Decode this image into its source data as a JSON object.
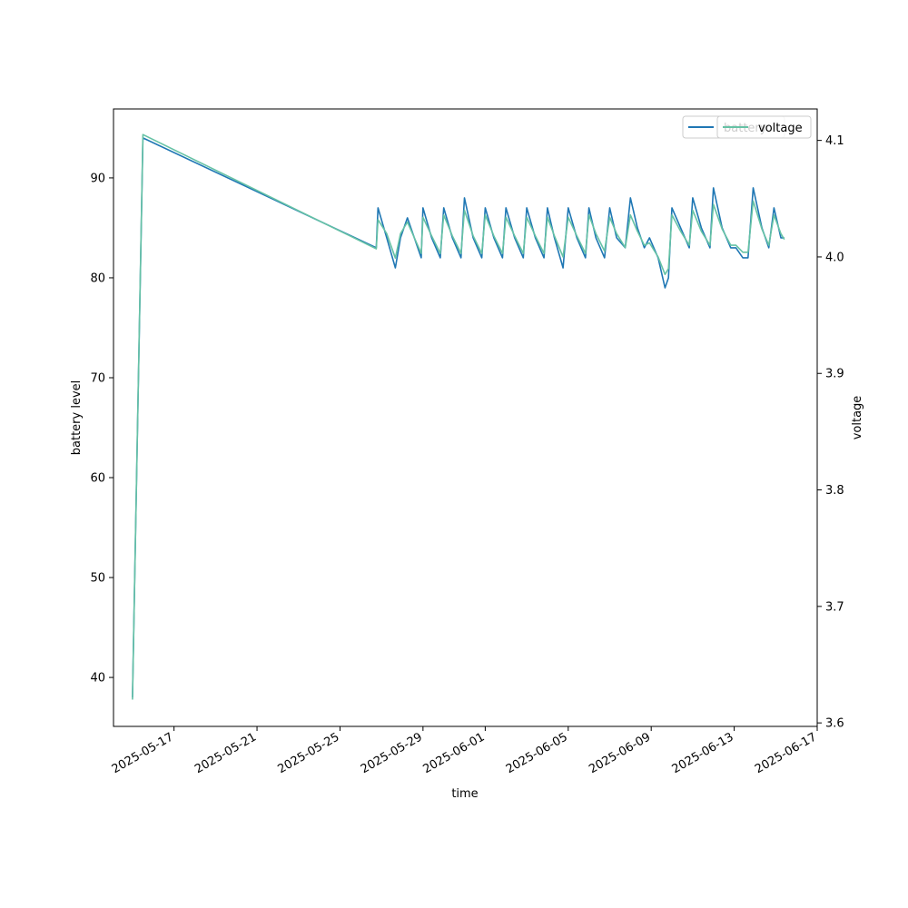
{
  "chart_data": {
    "type": "line",
    "xlabel": "time",
    "ylabel": "battery level",
    "y2label": "voltage",
    "xlim": [
      "2025-05-14T02:00",
      "2025-06-17T00:00"
    ],
    "ylim": [
      35.1,
      96.9
    ],
    "y2lim": [
      3.597,
      4.127
    ],
    "xticks": [
      "2025-05-17",
      "2025-05-21",
      "2025-05-25",
      "2025-05-29",
      "2025-06-01",
      "2025-06-05",
      "2025-06-09",
      "2025-06-13",
      "2025-06-17"
    ],
    "yticks": [
      40,
      50,
      60,
      70,
      80,
      90
    ],
    "y2ticks": [
      3.6,
      3.7,
      3.8,
      3.9,
      4.0,
      4.1
    ],
    "legend_position": "top-right",
    "grid": false,
    "series": [
      {
        "name": "battery",
        "axis": "left",
        "color": "#1f77b4",
        "points": [
          [
            "2025-05-15T00:00",
            38
          ],
          [
            "2025-05-15T12:00",
            94
          ],
          [
            "2025-05-26T18:00",
            83
          ],
          [
            "2025-05-26T20:00",
            87
          ],
          [
            "2025-05-27T06:00",
            84
          ],
          [
            "2025-05-27T16:00",
            81
          ],
          [
            "2025-05-27T22:00",
            84
          ],
          [
            "2025-05-28T06:00",
            86
          ],
          [
            "2025-05-28T22:00",
            82
          ],
          [
            "2025-05-29T00:00",
            87
          ],
          [
            "2025-05-29T10:00",
            84
          ],
          [
            "2025-05-29T20:00",
            82
          ],
          [
            "2025-05-30T00:00",
            87
          ],
          [
            "2025-05-30T10:00",
            84
          ],
          [
            "2025-05-30T20:00",
            82
          ],
          [
            "2025-05-31T00:00",
            88
          ],
          [
            "2025-05-31T10:00",
            84
          ],
          [
            "2025-05-31T20:00",
            82
          ],
          [
            "2025-06-01T00:00",
            87
          ],
          [
            "2025-06-01T10:00",
            84
          ],
          [
            "2025-06-01T20:00",
            82
          ],
          [
            "2025-06-02T00:00",
            87
          ],
          [
            "2025-06-02T10:00",
            84
          ],
          [
            "2025-06-02T20:00",
            82
          ],
          [
            "2025-06-03T00:00",
            87
          ],
          [
            "2025-06-03T10:00",
            84
          ],
          [
            "2025-06-03T20:00",
            82
          ],
          [
            "2025-06-04T00:00",
            87
          ],
          [
            "2025-06-04T08:00",
            84
          ],
          [
            "2025-06-04T18:00",
            81
          ],
          [
            "2025-06-05T00:00",
            87
          ],
          [
            "2025-06-05T10:00",
            84
          ],
          [
            "2025-06-05T20:00",
            82
          ],
          [
            "2025-06-06T00:00",
            87
          ],
          [
            "2025-06-06T08:00",
            84
          ],
          [
            "2025-06-06T18:00",
            82
          ],
          [
            "2025-06-07T00:00",
            87
          ],
          [
            "2025-06-07T08:00",
            84
          ],
          [
            "2025-06-07T18:00",
            83
          ],
          [
            "2025-06-08T00:00",
            88
          ],
          [
            "2025-06-08T08:00",
            85
          ],
          [
            "2025-06-08T16:00",
            83
          ],
          [
            "2025-06-08T22:00",
            84
          ],
          [
            "2025-06-09T08:00",
            82
          ],
          [
            "2025-06-09T16:00",
            79
          ],
          [
            "2025-06-09T20:00",
            80
          ],
          [
            "2025-06-10T00:00",
            87
          ],
          [
            "2025-06-10T10:00",
            85
          ],
          [
            "2025-06-10T20:00",
            83
          ],
          [
            "2025-06-11T00:00",
            88
          ],
          [
            "2025-06-11T10:00",
            85
          ],
          [
            "2025-06-11T20:00",
            83
          ],
          [
            "2025-06-12T00:00",
            89
          ],
          [
            "2025-06-12T10:00",
            85
          ],
          [
            "2025-06-12T20:00",
            83
          ],
          [
            "2025-06-13T02:00",
            83
          ],
          [
            "2025-06-13T10:00",
            82
          ],
          [
            "2025-06-13T16:00",
            82
          ],
          [
            "2025-06-13T22:00",
            89
          ],
          [
            "2025-06-14T08:00",
            85
          ],
          [
            "2025-06-14T16:00",
            83
          ],
          [
            "2025-06-14T22:00",
            87
          ],
          [
            "2025-06-15T06:00",
            84
          ],
          [
            "2025-06-15T10:00",
            84
          ]
        ]
      },
      {
        "name": "voltage",
        "axis": "right",
        "color": "#66c2a5",
        "points": [
          [
            "2025-05-15T00:00",
            3.62
          ],
          [
            "2025-05-15T12:00",
            4.105
          ],
          [
            "2025-05-26T18:00",
            4.007
          ],
          [
            "2025-05-26T20:00",
            4.032
          ],
          [
            "2025-05-27T06:00",
            4.02
          ],
          [
            "2025-05-27T16:00",
            3.999
          ],
          [
            "2025-05-27T22:00",
            4.02
          ],
          [
            "2025-05-28T06:00",
            4.03
          ],
          [
            "2025-05-28T22:00",
            4.003
          ],
          [
            "2025-05-29T00:00",
            4.034
          ],
          [
            "2025-05-29T10:00",
            4.018
          ],
          [
            "2025-05-29T20:00",
            4.003
          ],
          [
            "2025-05-30T00:00",
            4.036
          ],
          [
            "2025-05-30T10:00",
            4.018
          ],
          [
            "2025-05-30T20:00",
            4.003
          ],
          [
            "2025-05-31T00:00",
            4.04
          ],
          [
            "2025-05-31T10:00",
            4.018
          ],
          [
            "2025-05-31T20:00",
            4.003
          ],
          [
            "2025-06-01T00:00",
            4.036
          ],
          [
            "2025-06-01T10:00",
            4.018
          ],
          [
            "2025-06-01T20:00",
            4.003
          ],
          [
            "2025-06-02T00:00",
            4.034
          ],
          [
            "2025-06-02T10:00",
            4.018
          ],
          [
            "2025-06-02T20:00",
            4.003
          ],
          [
            "2025-06-03T00:00",
            4.034
          ],
          [
            "2025-06-03T10:00",
            4.018
          ],
          [
            "2025-06-03T20:00",
            4.003
          ],
          [
            "2025-06-04T00:00",
            4.034
          ],
          [
            "2025-06-04T08:00",
            4.018
          ],
          [
            "2025-06-04T18:00",
            4.0
          ],
          [
            "2025-06-05T00:00",
            4.034
          ],
          [
            "2025-06-05T10:00",
            4.018
          ],
          [
            "2025-06-05T20:00",
            4.003
          ],
          [
            "2025-06-06T00:00",
            4.036
          ],
          [
            "2025-06-06T08:00",
            4.02
          ],
          [
            "2025-06-06T18:00",
            4.005
          ],
          [
            "2025-06-07T00:00",
            4.034
          ],
          [
            "2025-06-07T08:00",
            4.02
          ],
          [
            "2025-06-07T18:00",
            4.008
          ],
          [
            "2025-06-08T00:00",
            4.036
          ],
          [
            "2025-06-08T08:00",
            4.022
          ],
          [
            "2025-06-08T16:00",
            4.01
          ],
          [
            "2025-06-08T22:00",
            4.012
          ],
          [
            "2025-06-09T08:00",
            4.0
          ],
          [
            "2025-06-09T16:00",
            3.985
          ],
          [
            "2025-06-09T20:00",
            3.99
          ],
          [
            "2025-06-10T00:00",
            4.036
          ],
          [
            "2025-06-10T10:00",
            4.022
          ],
          [
            "2025-06-10T20:00",
            4.01
          ],
          [
            "2025-06-11T00:00",
            4.04
          ],
          [
            "2025-06-11T10:00",
            4.022
          ],
          [
            "2025-06-11T20:00",
            4.01
          ],
          [
            "2025-06-12T00:00",
            4.045
          ],
          [
            "2025-06-12T10:00",
            4.024
          ],
          [
            "2025-06-12T20:00",
            4.01
          ],
          [
            "2025-06-13T02:00",
            4.01
          ],
          [
            "2025-06-13T10:00",
            4.004
          ],
          [
            "2025-06-13T16:00",
            4.004
          ],
          [
            "2025-06-13T22:00",
            4.048
          ],
          [
            "2025-06-14T08:00",
            4.024
          ],
          [
            "2025-06-14T16:00",
            4.01
          ],
          [
            "2025-06-14T22:00",
            4.036
          ],
          [
            "2025-06-15T06:00",
            4.02
          ],
          [
            "2025-06-15T10:00",
            4.015
          ]
        ]
      }
    ]
  }
}
